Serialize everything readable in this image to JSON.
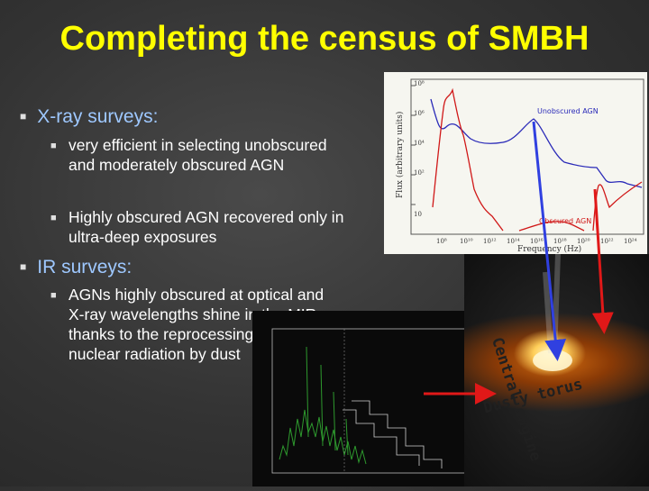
{
  "title": "Completing the census of SMBH",
  "sections": [
    {
      "label": "X-ray surveys:",
      "items": [
        "very efficient in selecting unobscured and moderately obscured AGN",
        "Highly obscured AGN recovered only in ultra-deep exposures"
      ]
    },
    {
      "label": "IR surveys:",
      "items": [
        "AGNs highly obscured at optical and X-ray wavelengths shine in the MIR thanks to the reprocessing of the nuclear radiation by dust"
      ]
    }
  ],
  "sed_plot": {
    "ylabel": "Flux (arbitrary units)",
    "xlabel": "Frequency (Hz)",
    "legend_unobscured": "Unobscured AGN",
    "legend_obscured": "Obscured AGN",
    "colors": {
      "unobscured": "#2a2ab8",
      "obscured": "#d01818"
    }
  },
  "agn_image": {
    "central_engine_label": "Central engine",
    "dusty_torus_label": "Dusty torus",
    "arrow_colors": {
      "blue": "#3040e0",
      "red": "#e01818"
    }
  }
}
